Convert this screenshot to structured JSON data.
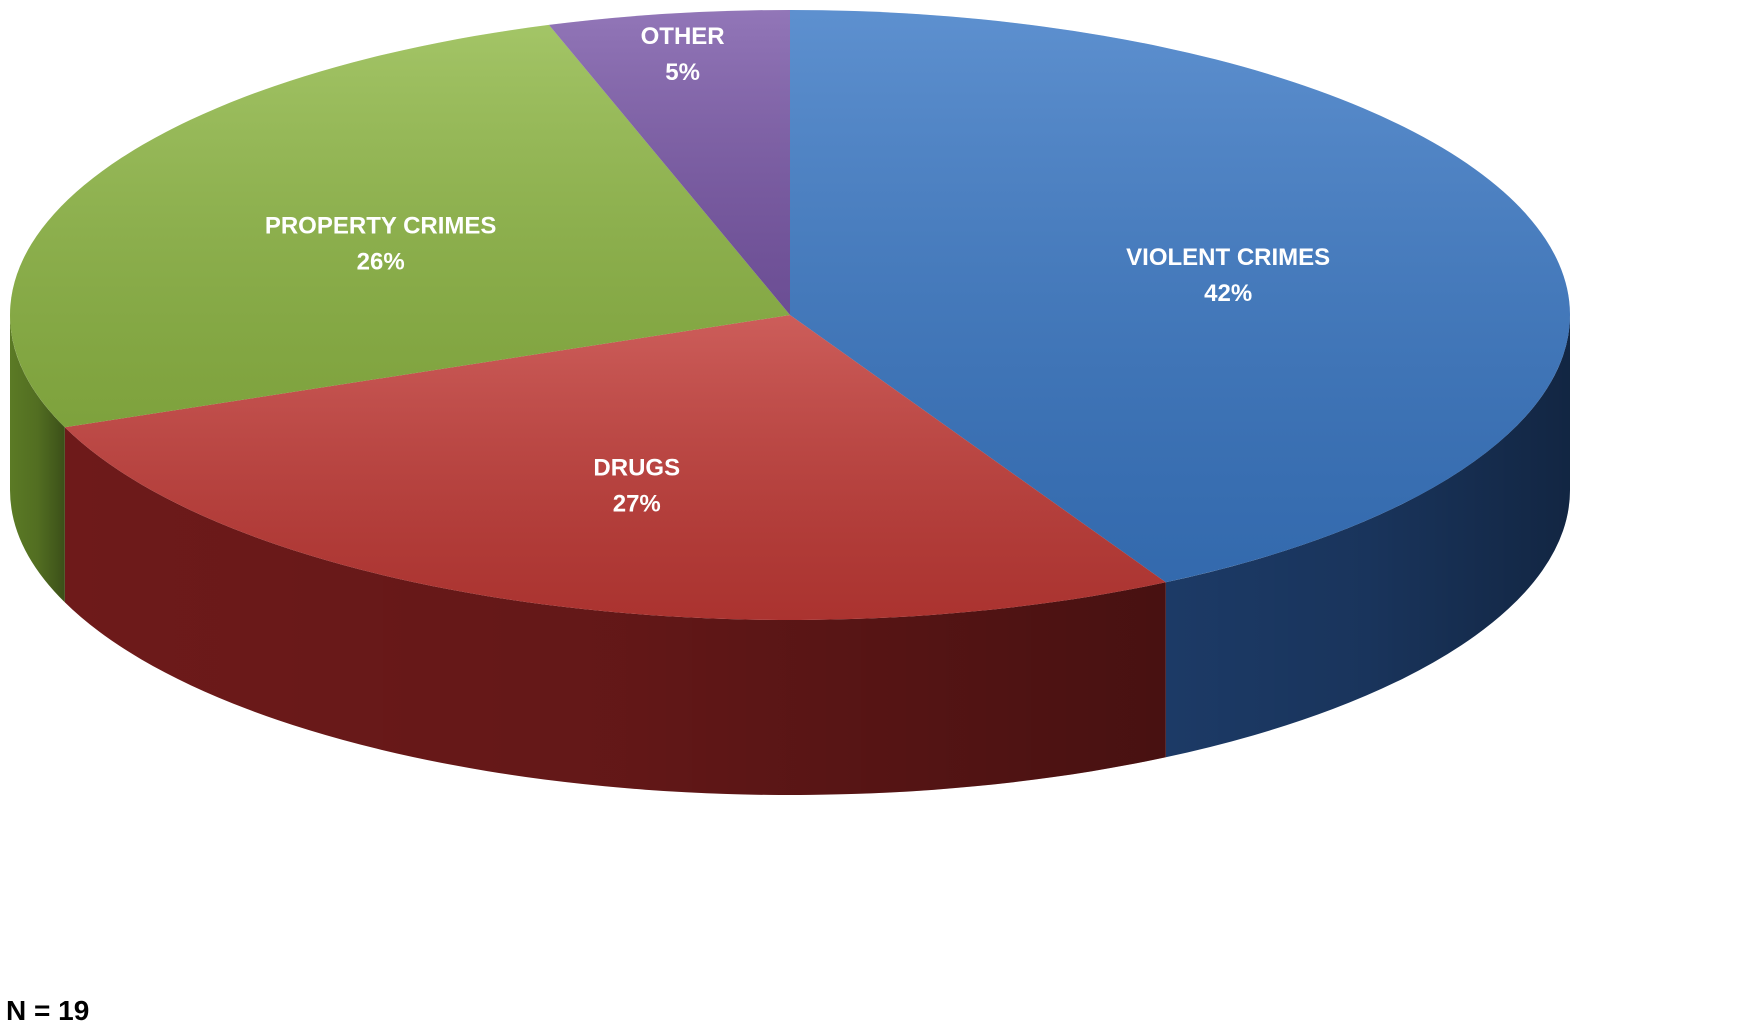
{
  "chart_data": {
    "type": "pie",
    "title": "",
    "slices": [
      {
        "name": "VIOLENT CRIMES",
        "label": "42%",
        "value": 42,
        "color": "#3a78c5",
        "side_color": "#1c3a66"
      },
      {
        "name": "DRUGS",
        "label": "27%",
        "value": 27,
        "color": "#c23a36",
        "side_color": "#6e1a1a"
      },
      {
        "name": "PROPERTY CRIMES",
        "label": "26%",
        "value": 26,
        "color": "#8fb845",
        "side_color": "#5b7a25"
      },
      {
        "name": "OTHER",
        "label": "5%",
        "value": 5,
        "color": "#7a58a8",
        "side_color": "#4b3370"
      }
    ],
    "start_angle_deg": -90,
    "direction": "clockwise",
    "view": "3d-tilted",
    "legend": "none"
  },
  "note": "N = 19"
}
